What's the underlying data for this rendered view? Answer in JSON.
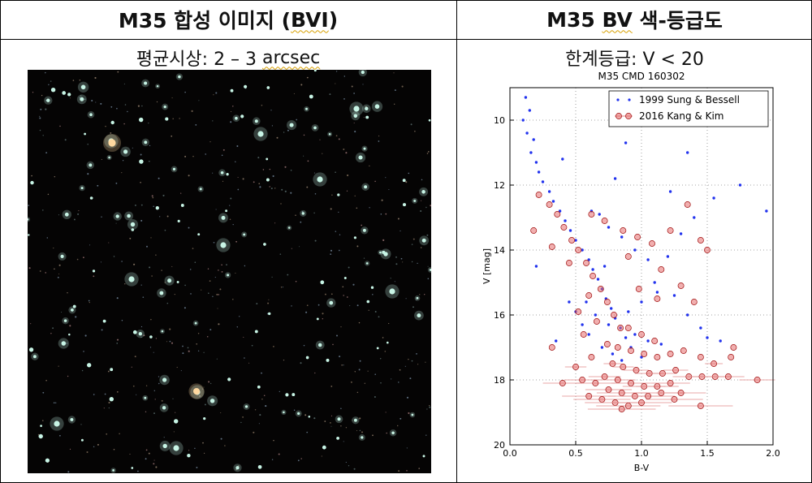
{
  "left_panel": {
    "title_prefix": "M35 합성 이미지 (",
    "title_mark": "BVI",
    "title_suffix": ")",
    "subtitle_prefix": "평균시상: 2 – 3 ",
    "subtitle_mark": "arcsec"
  },
  "right_panel": {
    "title_prefix": "M35 ",
    "title_mark": "BV",
    "title_suffix": " 색-등급도",
    "subtitle": "한계등급: V < 20"
  },
  "starfield": {
    "background_color": "#050404",
    "star_color": "#c8f5e6",
    "accent_star_color": "#ffd9a0"
  },
  "chart_data": {
    "type": "scatter",
    "title": "M35 CMD 160302",
    "xlabel": "B-V",
    "ylabel": "V [mag]",
    "xlim": [
      0.0,
      2.0
    ],
    "ylim": [
      20,
      9
    ],
    "xticks": [
      "0.0",
      "0.5",
      "1.0",
      "1.5",
      "2.0"
    ],
    "yticks": [
      "10",
      "12",
      "14",
      "16",
      "18",
      "20"
    ],
    "grid": true,
    "legend": "top-right",
    "series": [
      {
        "name": "1999 Sung & Bessell",
        "color": "#2233ee",
        "marker": "dot",
        "points": [
          [
            0.12,
            9.3
          ],
          [
            0.15,
            9.7
          ],
          [
            0.1,
            10.0
          ],
          [
            0.13,
            10.4
          ],
          [
            0.18,
            10.6
          ],
          [
            0.16,
            11.0
          ],
          [
            0.2,
            11.3
          ],
          [
            0.22,
            11.6
          ],
          [
            0.25,
            11.9
          ],
          [
            0.3,
            12.2
          ],
          [
            0.33,
            12.5
          ],
          [
            0.38,
            12.8
          ],
          [
            0.42,
            13.1
          ],
          [
            0.46,
            13.4
          ],
          [
            0.5,
            13.7
          ],
          [
            0.55,
            14.0
          ],
          [
            0.6,
            14.3
          ],
          [
            0.63,
            14.6
          ],
          [
            0.67,
            14.9
          ],
          [
            0.7,
            15.2
          ],
          [
            0.73,
            15.5
          ],
          [
            0.77,
            15.8
          ],
          [
            0.8,
            16.1
          ],
          [
            0.84,
            16.4
          ],
          [
            0.88,
            16.7
          ],
          [
            0.92,
            17.0
          ],
          [
            0.62,
            12.8
          ],
          [
            0.68,
            12.9
          ],
          [
            0.75,
            13.3
          ],
          [
            0.85,
            13.6
          ],
          [
            0.95,
            14.0
          ],
          [
            1.05,
            14.3
          ],
          [
            1.2,
            14.2
          ],
          [
            1.3,
            13.5
          ],
          [
            1.4,
            13.0
          ],
          [
            1.55,
            12.4
          ],
          [
            1.75,
            12.0
          ],
          [
            1.35,
            11.0
          ],
          [
            0.88,
            10.7
          ],
          [
            1.1,
            15.0
          ],
          [
            1.25,
            15.4
          ],
          [
            1.35,
            16.0
          ],
          [
            1.45,
            16.4
          ],
          [
            1.5,
            16.7
          ],
          [
            1.6,
            16.8
          ],
          [
            0.6,
            16.6
          ],
          [
            0.55,
            16.3
          ],
          [
            0.5,
            15.9
          ],
          [
            0.45,
            15.6
          ],
          [
            0.65,
            16.0
          ],
          [
            0.75,
            16.3
          ],
          [
            0.95,
            16.6
          ],
          [
            1.05,
            16.8
          ],
          [
            1.15,
            16.9
          ],
          [
            0.7,
            17.0
          ],
          [
            0.78,
            17.2
          ],
          [
            0.85,
            17.4
          ],
          [
            1.0,
            17.3
          ],
          [
            0.9,
            15.9
          ],
          [
            1.0,
            15.6
          ],
          [
            1.12,
            15.3
          ],
          [
            0.35,
            16.8
          ],
          [
            0.2,
            14.5
          ],
          [
            1.95,
            12.8
          ],
          [
            0.4,
            11.2
          ],
          [
            0.8,
            11.8
          ],
          [
            1.22,
            12.2
          ],
          [
            0.58,
            15.6
          ],
          [
            0.72,
            14.5
          ]
        ]
      },
      {
        "name": "2016 Kang & Kim",
        "color": "#d42020",
        "marker": "circle",
        "points": [
          [
            0.22,
            12.3
          ],
          [
            0.3,
            12.6
          ],
          [
            0.36,
            12.9
          ],
          [
            0.41,
            13.3
          ],
          [
            0.47,
            13.7
          ],
          [
            0.52,
            14.0
          ],
          [
            0.58,
            14.4
          ],
          [
            0.63,
            14.8
          ],
          [
            0.69,
            15.2
          ],
          [
            0.74,
            15.6
          ],
          [
            0.79,
            16.0
          ],
          [
            0.84,
            16.4
          ],
          [
            0.62,
            12.9
          ],
          [
            0.72,
            13.1
          ],
          [
            0.86,
            13.4
          ],
          [
            0.97,
            13.6
          ],
          [
            1.08,
            13.8
          ],
          [
            1.22,
            13.4
          ],
          [
            1.35,
            12.6
          ],
          [
            1.45,
            13.7
          ],
          [
            1.5,
            14.0
          ],
          [
            0.9,
            14.2
          ],
          [
            1.15,
            14.6
          ],
          [
            1.3,
            15.1
          ],
          [
            0.18,
            13.4
          ],
          [
            0.32,
            13.9
          ],
          [
            0.45,
            14.4
          ],
          [
            0.98,
            15.2
          ],
          [
            1.12,
            15.5
          ],
          [
            1.4,
            15.6
          ],
          [
            0.6,
            15.4
          ],
          [
            0.52,
            15.9
          ],
          [
            0.66,
            16.2
          ],
          [
            0.56,
            16.6
          ],
          [
            0.74,
            16.9
          ],
          [
            0.82,
            17.0
          ],
          [
            0.92,
            17.1
          ],
          [
            1.02,
            17.2
          ],
          [
            1.12,
            17.3
          ],
          [
            1.22,
            17.2
          ],
          [
            1.32,
            17.1
          ],
          [
            1.45,
            17.3
          ],
          [
            0.78,
            17.5
          ],
          [
            0.86,
            17.6
          ],
          [
            0.96,
            17.7
          ],
          [
            1.06,
            17.8
          ],
          [
            1.16,
            17.8
          ],
          [
            1.26,
            17.7
          ],
          [
            1.36,
            17.9
          ],
          [
            1.46,
            17.9
          ],
          [
            1.56,
            17.9
          ],
          [
            1.66,
            17.9
          ],
          [
            0.72,
            17.9
          ],
          [
            0.82,
            18.0
          ],
          [
            0.92,
            18.1
          ],
          [
            1.02,
            18.2
          ],
          [
            1.12,
            18.2
          ],
          [
            1.22,
            18.1
          ],
          [
            0.55,
            18.0
          ],
          [
            0.65,
            18.1
          ],
          [
            0.75,
            18.3
          ],
          [
            0.85,
            18.4
          ],
          [
            0.95,
            18.5
          ],
          [
            1.05,
            18.5
          ],
          [
            1.15,
            18.4
          ],
          [
            1.3,
            18.4
          ],
          [
            0.6,
            18.5
          ],
          [
            0.7,
            18.6
          ],
          [
            0.8,
            18.7
          ],
          [
            0.9,
            18.8
          ],
          [
            1.0,
            18.7
          ],
          [
            0.32,
            17.0
          ],
          [
            1.7,
            17.0
          ],
          [
            1.88,
            18.0
          ],
          [
            0.4,
            18.1
          ],
          [
            0.85,
            18.9
          ],
          [
            1.45,
            18.8
          ],
          [
            1.0,
            16.6
          ],
          [
            0.9,
            16.4
          ],
          [
            1.1,
            16.8
          ],
          [
            1.55,
            17.5
          ],
          [
            0.5,
            17.6
          ],
          [
            1.25,
            18.6
          ],
          [
            0.62,
            17.3
          ],
          [
            1.68,
            17.3
          ]
        ]
      }
    ]
  }
}
